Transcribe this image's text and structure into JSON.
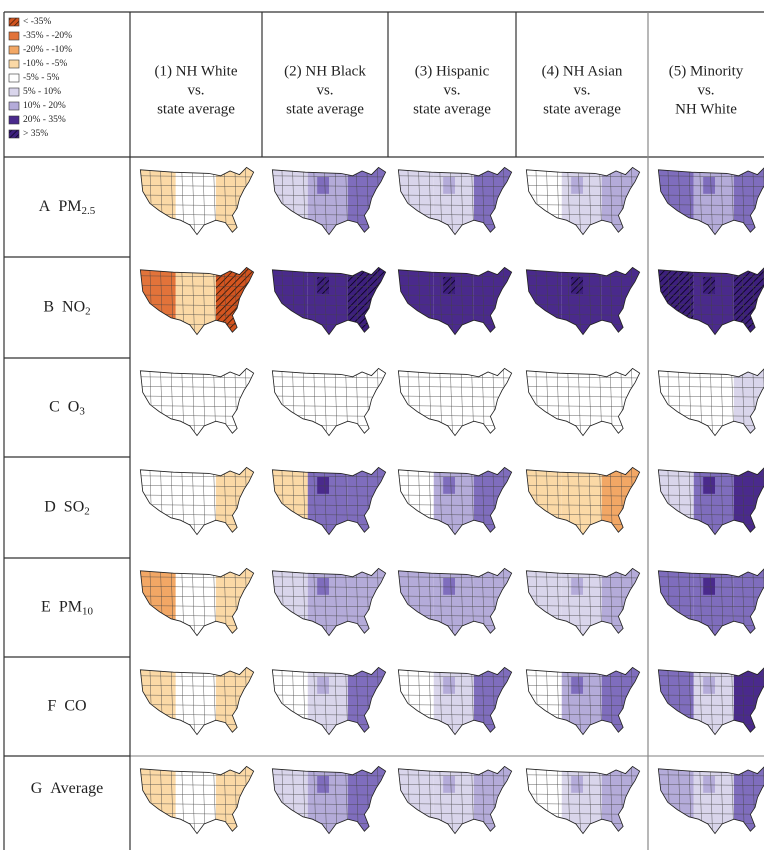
{
  "legend": [
    "< -35%",
    "-35% - -20%",
    "-20% - -10%",
    "-10% - -5%",
    "-5% - 5%",
    "5% - 10%",
    "10% - 20%",
    "20% - 35%",
    "> 35%"
  ],
  "columns": [
    [
      "(1) NH White",
      "vs.",
      "state average"
    ],
    [
      "(2) NH Black",
      "vs.",
      "state average"
    ],
    [
      "(3) Hispanic",
      "vs.",
      "state average"
    ],
    [
      "(4) NH Asian",
      "vs.",
      "state average"
    ],
    [
      "(5) Minority",
      "vs.",
      "NH White"
    ]
  ],
  "rows": [
    {
      "letter": "A",
      "name": "PM",
      "subscript": "2.5"
    },
    {
      "letter": "B",
      "name": "NO",
      "subscript": "2"
    },
    {
      "letter": "C",
      "name": "O",
      "subscript": "3"
    },
    {
      "letter": "D",
      "name": "SO",
      "subscript": "2"
    },
    {
      "letter": "E",
      "name": "PM",
      "subscript": "10"
    },
    {
      "letter": "F",
      "name": "CO"
    },
    {
      "letter": "G",
      "name": "Average"
    }
  ]
}
